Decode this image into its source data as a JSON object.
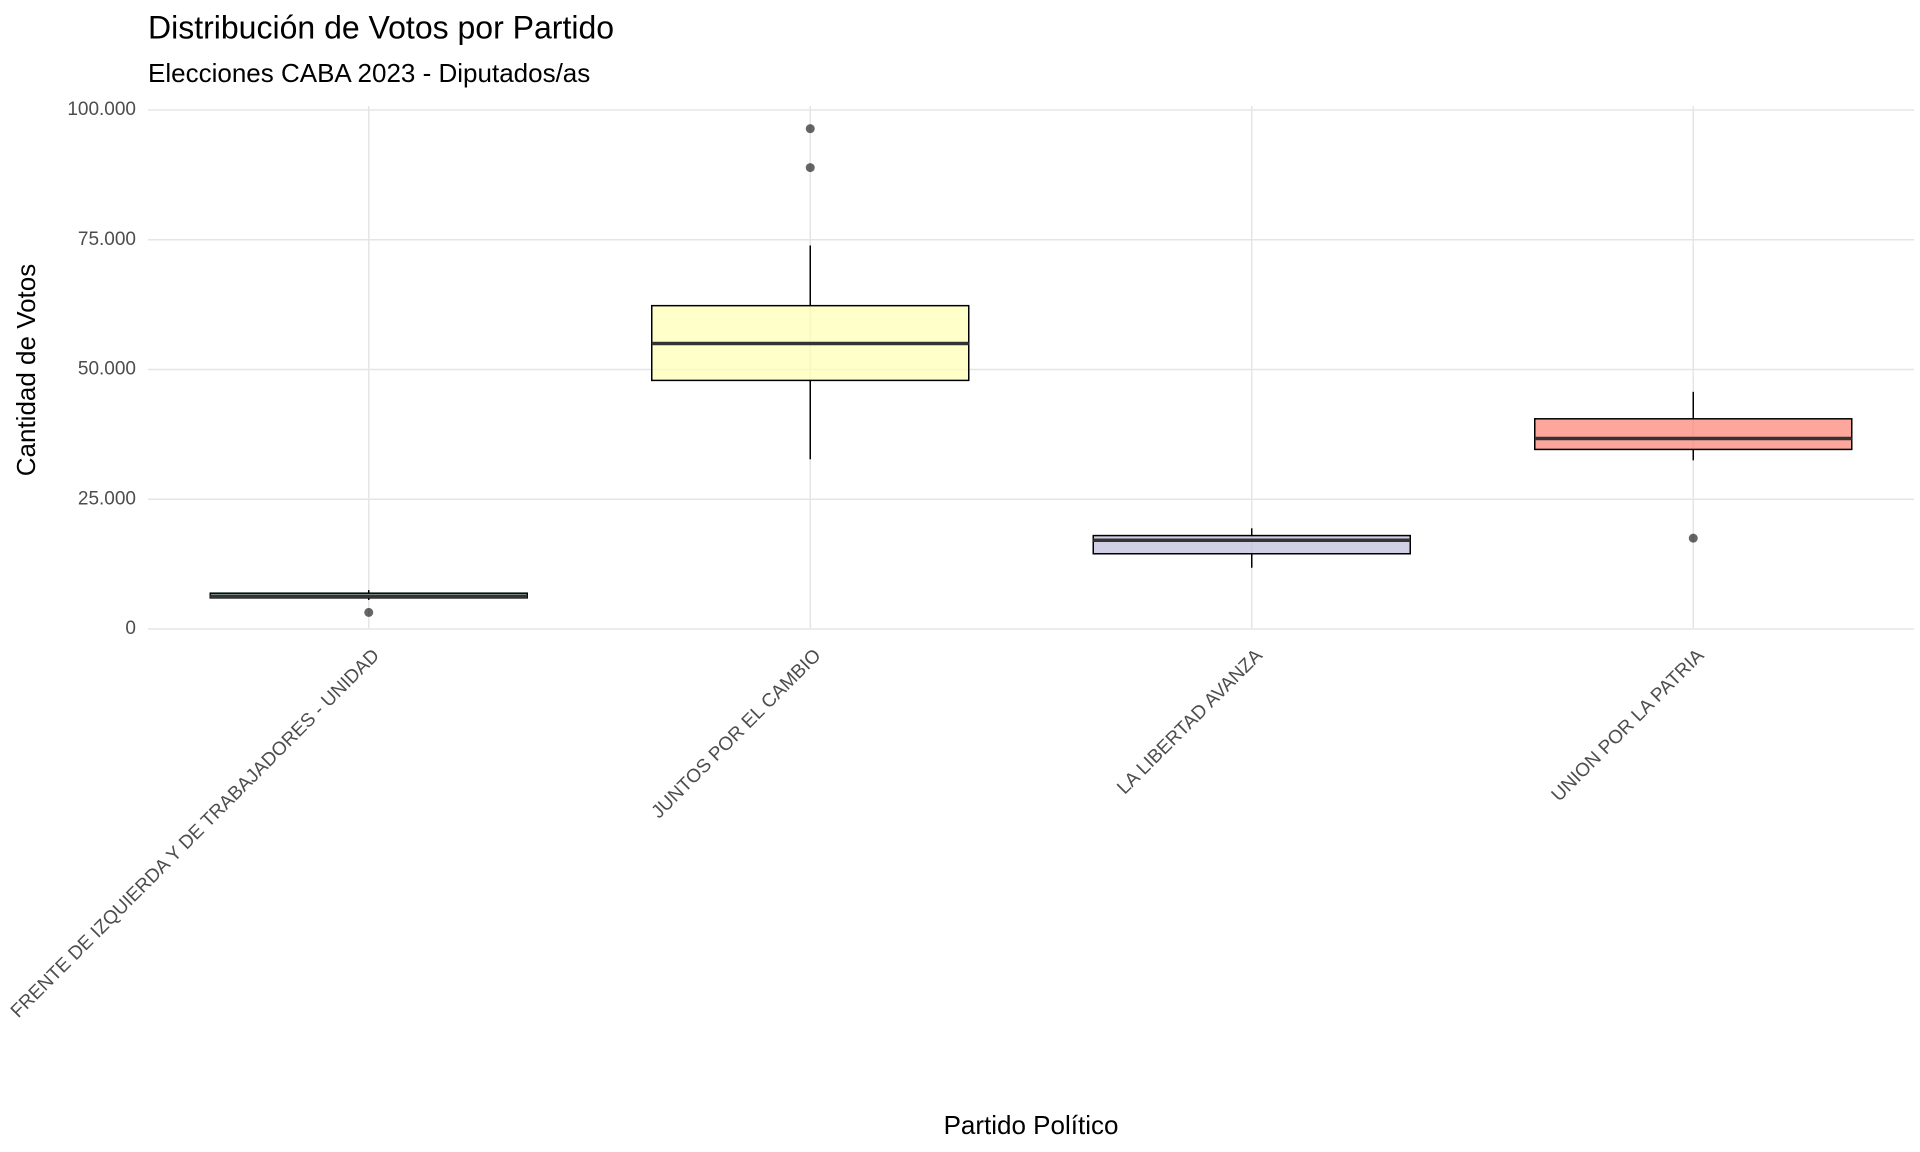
{
  "chart_data": {
    "type": "boxplot",
    "title": "Distribución de Votos por Partido",
    "subtitle": "Elecciones CABA 2023 - Diputados/as",
    "x_label": "Partido Político",
    "y_label": "Cantidad de Votos",
    "categories": [
      "FRENTE DE IZQUIERDA Y DE TRABAJADORES - UNIDAD",
      "JUNTOS POR EL CAMBIO",
      "LA LIBERTAD AVANZA",
      "UNION POR LA PATRIA"
    ],
    "colors": [
      "#8dd3c7",
      "#ffffb3",
      "#bebada",
      "#fb8072"
    ],
    "boxes": [
      {
        "whislo": 5600,
        "q1": 6000,
        "med": 6300,
        "q3": 6900,
        "whishi": 7500,
        "outliers": [
          3200
        ]
      },
      {
        "whislo": 32700,
        "q1": 47900,
        "med": 55000,
        "q3": 62300,
        "whishi": 73900,
        "outliers": [
          96400,
          88900
        ]
      },
      {
        "whislo": 11800,
        "q1": 14500,
        "med": 17100,
        "q3": 18000,
        "whishi": 19400,
        "outliers": []
      },
      {
        "whislo": 32500,
        "q1": 34600,
        "med": 36700,
        "q3": 40500,
        "whishi": 45700,
        "outliers": [
          17500
        ]
      }
    ],
    "ylim": [
      0,
      100000
    ],
    "yticks": [
      0,
      {
        "value": 25000,
        "label": "25.000"
      },
      {
        "value": 50000,
        "label": "50.000"
      },
      {
        "value": 75000,
        "label": "75.000"
      },
      {
        "value": 100000,
        "label": "100.000"
      }
    ],
    "grid": true
  }
}
